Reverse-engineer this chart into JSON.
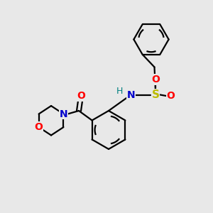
{
  "background_color": "#e8e8e8",
  "bond_color": "#000000",
  "atom_colors": {
    "N": "#0000cc",
    "O": "#ff0000",
    "S": "#bbbb00",
    "H": "#008080",
    "C": "#000000"
  },
  "figsize": [
    3.0,
    3.0
  ],
  "dpi": 100,
  "xlim": [
    0,
    10
  ],
  "ylim": [
    0,
    10
  ]
}
